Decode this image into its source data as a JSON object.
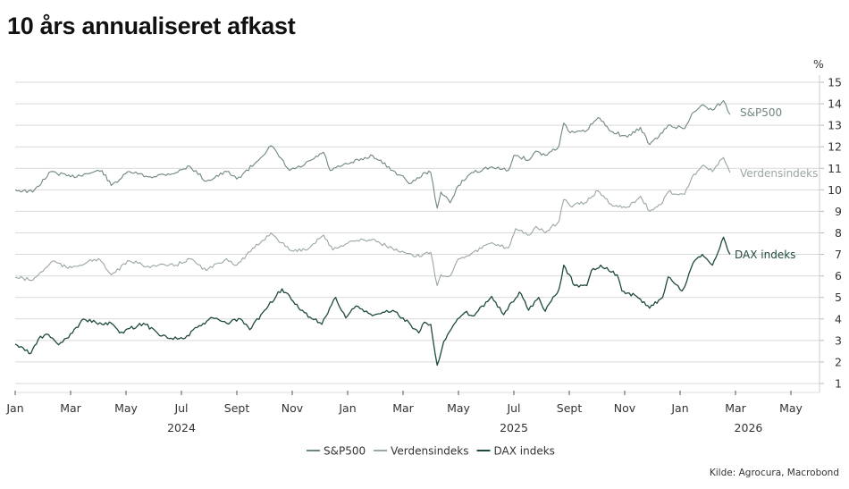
{
  "chart_data": {
    "type": "line",
    "title": "10 års annualiseret afkast",
    "unit": "%",
    "source": "Kilde: Agrocura, Macrobond",
    "ylim": [
      1,
      15
    ],
    "y_ticks": [
      "1",
      "2",
      "3",
      "4",
      "5",
      "6",
      "7",
      "8",
      "9",
      "10",
      "11",
      "12",
      "13",
      "14",
      "15"
    ],
    "y_axis_side": "right",
    "grid": true,
    "legend_position": "bottom",
    "xlim": [
      "2024-01-01",
      "2026-06-01"
    ],
    "x_ticks": [
      {
        "date": "2024-01-01",
        "label": "Jan"
      },
      {
        "date": "2024-03-01",
        "label": "Mar"
      },
      {
        "date": "2024-05-01",
        "label": "May"
      },
      {
        "date": "2024-07-01",
        "label": "Jul"
      },
      {
        "date": "2024-09-01",
        "label": "Sept"
      },
      {
        "date": "2024-11-01",
        "label": "Nov"
      },
      {
        "date": "2025-01-01",
        "label": "Jan"
      },
      {
        "date": "2025-03-01",
        "label": "Mar"
      },
      {
        "date": "2025-05-01",
        "label": "May"
      },
      {
        "date": "2025-07-01",
        "label": "Jul"
      },
      {
        "date": "2025-09-01",
        "label": "Sept"
      },
      {
        "date": "2025-11-01",
        "label": "Nov"
      },
      {
        "date": "2026-01-01",
        "label": "Jan"
      },
      {
        "date": "2026-03-01",
        "label": "Mar"
      },
      {
        "date": "2026-05-01",
        "label": "May"
      }
    ],
    "year_labels": [
      {
        "date": "2024-07-01",
        "label": "2024"
      },
      {
        "date": "2025-07-01",
        "label": "2025"
      },
      {
        "date": "2026-03-15",
        "label": "2026"
      }
    ],
    "series": [
      {
        "name": "S&P500",
        "color": "#6f877d",
        "points": [
          [
            "2024-01-01",
            10.0
          ],
          [
            "2024-01-20",
            9.9
          ],
          [
            "2024-02-10",
            10.85
          ],
          [
            "2024-03-01",
            10.6
          ],
          [
            "2024-04-05",
            10.9
          ],
          [
            "2024-04-15",
            10.2
          ],
          [
            "2024-05-05",
            10.85
          ],
          [
            "2024-05-25",
            10.6
          ],
          [
            "2024-06-25",
            10.8
          ],
          [
            "2024-07-10",
            11.1
          ],
          [
            "2024-07-28",
            10.4
          ],
          [
            "2024-08-20",
            10.85
          ],
          [
            "2024-09-01",
            10.5
          ],
          [
            "2024-09-20",
            11.2
          ],
          [
            "2024-10-08",
            12.05
          ],
          [
            "2024-10-28",
            10.9
          ],
          [
            "2024-11-12",
            11.1
          ],
          [
            "2024-12-05",
            11.75
          ],
          [
            "2024-12-12",
            10.9
          ],
          [
            "2025-01-01",
            11.2
          ],
          [
            "2025-01-28",
            11.6
          ],
          [
            "2025-02-20",
            10.9
          ],
          [
            "2025-03-10",
            10.3
          ],
          [
            "2025-03-25",
            10.8
          ],
          [
            "2025-04-01",
            10.8
          ],
          [
            "2025-04-08",
            9.15
          ],
          [
            "2025-04-12",
            9.9
          ],
          [
            "2025-04-22",
            9.4
          ],
          [
            "2025-05-01",
            10.2
          ],
          [
            "2025-05-15",
            10.8
          ],
          [
            "2025-06-05",
            11.05
          ],
          [
            "2025-06-25",
            10.9
          ],
          [
            "2025-07-01",
            11.6
          ],
          [
            "2025-07-18",
            11.4
          ],
          [
            "2025-07-25",
            11.8
          ],
          [
            "2025-08-05",
            11.6
          ],
          [
            "2025-08-20",
            12.05
          ],
          [
            "2025-08-25",
            13.1
          ],
          [
            "2025-09-02",
            12.65
          ],
          [
            "2025-09-18",
            12.7
          ],
          [
            "2025-10-02",
            13.35
          ],
          [
            "2025-10-18",
            12.7
          ],
          [
            "2025-11-04",
            12.45
          ],
          [
            "2025-11-18",
            12.9
          ],
          [
            "2025-11-28",
            12.1
          ],
          [
            "2025-12-12",
            12.65
          ],
          [
            "2025-12-18",
            13.0
          ],
          [
            "2026-01-06",
            12.85
          ],
          [
            "2026-01-14",
            13.55
          ],
          [
            "2026-01-26",
            13.95
          ],
          [
            "2026-02-06",
            13.7
          ],
          [
            "2026-02-18",
            14.15
          ],
          [
            "2026-02-25",
            13.5
          ]
        ]
      },
      {
        "name": "Verdensindeks",
        "color": "#9aa7a4",
        "points": [
          [
            "2024-01-01",
            5.94
          ],
          [
            "2024-01-20",
            5.8
          ],
          [
            "2024-02-12",
            6.7
          ],
          [
            "2024-02-28",
            6.35
          ],
          [
            "2024-04-01",
            6.8
          ],
          [
            "2024-04-15",
            6.05
          ],
          [
            "2024-05-05",
            6.7
          ],
          [
            "2024-05-25",
            6.45
          ],
          [
            "2024-06-25",
            6.5
          ],
          [
            "2024-07-10",
            6.8
          ],
          [
            "2024-07-28",
            6.25
          ],
          [
            "2024-08-20",
            6.8
          ],
          [
            "2024-09-01",
            6.5
          ],
          [
            "2024-09-20",
            7.3
          ],
          [
            "2024-10-08",
            8.0
          ],
          [
            "2024-10-28",
            7.2
          ],
          [
            "2024-11-15",
            7.2
          ],
          [
            "2024-12-05",
            7.9
          ],
          [
            "2024-12-15",
            7.2
          ],
          [
            "2025-01-03",
            7.6
          ],
          [
            "2025-01-28",
            7.7
          ],
          [
            "2025-02-28",
            7.1
          ],
          [
            "2025-03-15",
            6.9
          ],
          [
            "2025-04-01",
            7.1
          ],
          [
            "2025-04-08",
            5.55
          ],
          [
            "2025-04-12",
            6.05
          ],
          [
            "2025-04-22",
            6.0
          ],
          [
            "2025-05-01",
            6.8
          ],
          [
            "2025-05-15",
            7.05
          ],
          [
            "2025-06-05",
            7.5
          ],
          [
            "2025-06-25",
            7.3
          ],
          [
            "2025-07-03",
            8.2
          ],
          [
            "2025-07-18",
            7.9
          ],
          [
            "2025-07-25",
            8.3
          ],
          [
            "2025-08-05",
            8.0
          ],
          [
            "2025-08-20",
            8.55
          ],
          [
            "2025-08-25",
            9.55
          ],
          [
            "2025-09-02",
            9.25
          ],
          [
            "2025-09-18",
            9.4
          ],
          [
            "2025-10-02",
            9.95
          ],
          [
            "2025-10-18",
            9.25
          ],
          [
            "2025-11-04",
            9.2
          ],
          [
            "2025-11-18",
            9.7
          ],
          [
            "2025-11-28",
            9.0
          ],
          [
            "2025-12-12",
            9.4
          ],
          [
            "2025-12-18",
            9.9
          ],
          [
            "2026-01-06",
            9.8
          ],
          [
            "2026-01-14",
            10.6
          ],
          [
            "2026-01-26",
            11.15
          ],
          [
            "2026-02-06",
            10.85
          ],
          [
            "2026-02-18",
            11.5
          ],
          [
            "2026-02-25",
            10.8
          ]
        ]
      },
      {
        "name": "DAX indeks",
        "color": "#1f4a3a",
        "points": [
          [
            "2024-01-01",
            2.83
          ],
          [
            "2024-01-18",
            2.4
          ],
          [
            "2024-01-26",
            3.05
          ],
          [
            "2024-02-05",
            3.3
          ],
          [
            "2024-02-18",
            2.8
          ],
          [
            "2024-03-03",
            3.35
          ],
          [
            "2024-03-15",
            4.0
          ],
          [
            "2024-04-05",
            3.75
          ],
          [
            "2024-04-15",
            3.8
          ],
          [
            "2024-04-24",
            3.35
          ],
          [
            "2024-05-20",
            3.8
          ],
          [
            "2024-06-05",
            3.35
          ],
          [
            "2024-06-20",
            3.1
          ],
          [
            "2024-07-05",
            3.1
          ],
          [
            "2024-07-18",
            3.6
          ],
          [
            "2024-08-05",
            4.05
          ],
          [
            "2024-08-20",
            3.8
          ],
          [
            "2024-09-05",
            4.0
          ],
          [
            "2024-09-15",
            3.5
          ],
          [
            "2024-10-01",
            4.4
          ],
          [
            "2024-10-20",
            5.4
          ],
          [
            "2024-10-30",
            4.9
          ],
          [
            "2024-11-10",
            4.4
          ],
          [
            "2024-12-03",
            3.75
          ],
          [
            "2024-12-18",
            5.0
          ],
          [
            "2024-12-29",
            4.05
          ],
          [
            "2025-01-10",
            4.6
          ],
          [
            "2025-01-28",
            4.15
          ],
          [
            "2025-02-20",
            4.4
          ],
          [
            "2025-03-01",
            4.05
          ],
          [
            "2025-03-18",
            3.35
          ],
          [
            "2025-03-24",
            3.85
          ],
          [
            "2025-04-01",
            3.75
          ],
          [
            "2025-04-08",
            1.85
          ],
          [
            "2025-04-15",
            2.95
          ],
          [
            "2025-04-28",
            3.85
          ],
          [
            "2025-05-08",
            4.3
          ],
          [
            "2025-05-18",
            4.15
          ],
          [
            "2025-06-07",
            5.05
          ],
          [
            "2025-06-20",
            4.2
          ],
          [
            "2025-07-07",
            5.25
          ],
          [
            "2025-07-17",
            4.4
          ],
          [
            "2025-07-28",
            5.0
          ],
          [
            "2025-08-05",
            4.35
          ],
          [
            "2025-08-20",
            5.4
          ],
          [
            "2025-08-25",
            6.5
          ],
          [
            "2025-09-07",
            5.55
          ],
          [
            "2025-09-20",
            5.55
          ],
          [
            "2025-09-25",
            6.25
          ],
          [
            "2025-10-05",
            6.5
          ],
          [
            "2025-10-23",
            6.05
          ],
          [
            "2025-10-28",
            5.3
          ],
          [
            "2025-11-14",
            5.05
          ],
          [
            "2025-11-28",
            4.5
          ],
          [
            "2025-12-12",
            5.0
          ],
          [
            "2025-12-18",
            5.95
          ],
          [
            "2026-01-03",
            5.3
          ],
          [
            "2026-01-06",
            5.5
          ],
          [
            "2026-01-15",
            6.6
          ],
          [
            "2026-01-25",
            7.0
          ],
          [
            "2026-02-06",
            6.5
          ],
          [
            "2026-02-18",
            7.8
          ],
          [
            "2026-02-25",
            7.0
          ]
        ]
      }
    ]
  }
}
